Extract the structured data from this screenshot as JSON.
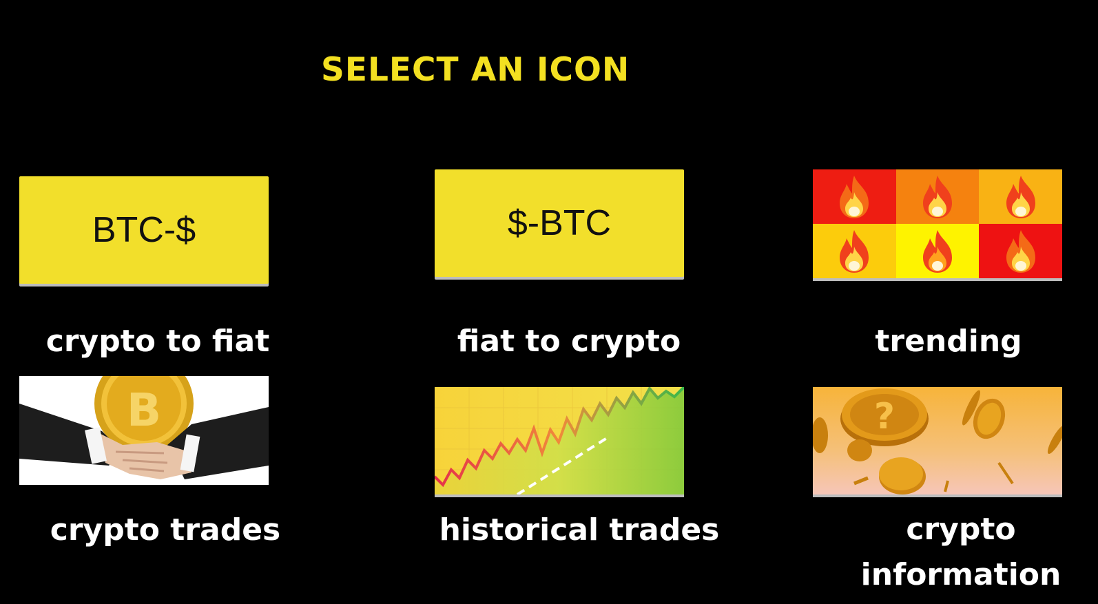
{
  "header": {
    "title": "SELECT AN ICON"
  },
  "tiles": [
    {
      "tile_text": "BTC-$",
      "label": "crypto to fiat"
    },
    {
      "tile_text": "$-BTC",
      "label": "fiat to crypto"
    },
    {
      "label": "trending",
      "icon": "fire-icon"
    },
    {
      "label": "crypto trades",
      "icon": "handshake-bitcoin-icon"
    },
    {
      "label": "historical trades",
      "icon": "stock-chart-icon"
    },
    {
      "label_line1": "crypto",
      "label_line2": "information",
      "icon": "coins-question-icon"
    }
  ],
  "colors": {
    "background": "#000000",
    "title": "#f3e021",
    "tile_yellow": "#f2df2b",
    "label": "#ffffff"
  }
}
